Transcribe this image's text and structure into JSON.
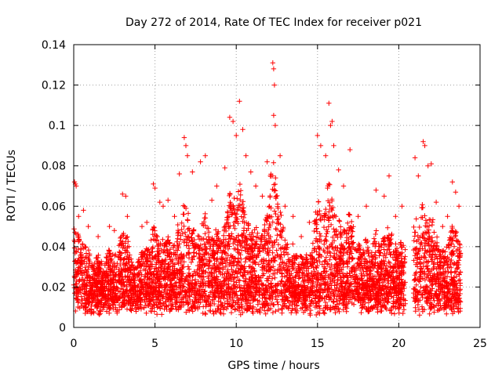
{
  "chart_data": {
    "type": "scatter",
    "title": "Day 272 of 2014, Rate Of TEC Index for receiver p021",
    "xlabel": "GPS time / hours",
    "ylabel": "ROTI / TECUs",
    "xlim": [
      0,
      25
    ],
    "ylim": [
      0,
      0.14
    ],
    "xticks": [
      0,
      5,
      10,
      15,
      20,
      25
    ],
    "xtick_labels": [
      "0",
      "5",
      "10",
      "15",
      "20",
      "25"
    ],
    "yticks": [
      0,
      0.02,
      0.04,
      0.06,
      0.08,
      0.1,
      0.12,
      0.14
    ],
    "ytick_labels": [
      "0",
      "0.02",
      "0.04",
      "0.06",
      "0.08",
      "0.1",
      "0.12",
      "0.14"
    ],
    "grid": true,
    "marker": "+",
    "color": "#ff0000",
    "data_gap_hours": [
      20.4,
      20.9
    ],
    "data_extent_hours": [
      0,
      23.8
    ],
    "series": [
      {
        "name": "ROTI",
        "points": [
          [
            0.05,
            0.072
          ],
          [
            0.1,
            0.071
          ],
          [
            0.15,
            0.07
          ],
          [
            0.3,
            0.055
          ],
          [
            0.6,
            0.058
          ],
          [
            0.9,
            0.05
          ],
          [
            1.5,
            0.045
          ],
          [
            2.2,
            0.05
          ],
          [
            2.5,
            0.048
          ],
          [
            3.0,
            0.066
          ],
          [
            3.2,
            0.065
          ],
          [
            3.3,
            0.055
          ],
          [
            4.2,
            0.05
          ],
          [
            4.5,
            0.052
          ],
          [
            4.9,
            0.071
          ],
          [
            5.0,
            0.069
          ],
          [
            5.3,
            0.062
          ],
          [
            5.5,
            0.06
          ],
          [
            5.8,
            0.063
          ],
          [
            6.2,
            0.055
          ],
          [
            6.5,
            0.076
          ],
          [
            6.8,
            0.094
          ],
          [
            6.9,
            0.09
          ],
          [
            7.0,
            0.085
          ],
          [
            7.3,
            0.077
          ],
          [
            7.8,
            0.082
          ],
          [
            8.1,
            0.085
          ],
          [
            8.5,
            0.063
          ],
          [
            8.8,
            0.07
          ],
          [
            9.3,
            0.079
          ],
          [
            9.6,
            0.104
          ],
          [
            9.8,
            0.102
          ],
          [
            10.0,
            0.095
          ],
          [
            10.2,
            0.112
          ],
          [
            10.4,
            0.098
          ],
          [
            10.6,
            0.085
          ],
          [
            10.9,
            0.077
          ],
          [
            11.2,
            0.07
          ],
          [
            11.6,
            0.065
          ],
          [
            11.9,
            0.082
          ],
          [
            12.1,
            0.075
          ],
          [
            12.25,
            0.131
          ],
          [
            12.3,
            0.128
          ],
          [
            12.35,
            0.12
          ],
          [
            12.3,
            0.105
          ],
          [
            12.4,
            0.1
          ],
          [
            12.7,
            0.085
          ],
          [
            13.0,
            0.06
          ],
          [
            13.5,
            0.055
          ],
          [
            14.0,
            0.045
          ],
          [
            14.5,
            0.052
          ],
          [
            15.0,
            0.095
          ],
          [
            15.2,
            0.09
          ],
          [
            15.5,
            0.085
          ],
          [
            15.7,
            0.111
          ],
          [
            15.9,
            0.102
          ],
          [
            15.8,
            0.1
          ],
          [
            16.0,
            0.09
          ],
          [
            16.3,
            0.078
          ],
          [
            16.6,
            0.07
          ],
          [
            17.0,
            0.088
          ],
          [
            17.5,
            0.055
          ],
          [
            18.0,
            0.06
          ],
          [
            18.6,
            0.068
          ],
          [
            19.1,
            0.065
          ],
          [
            19.4,
            0.075
          ],
          [
            19.8,
            0.055
          ],
          [
            20.2,
            0.06
          ],
          [
            21.0,
            0.084
          ],
          [
            21.2,
            0.075
          ],
          [
            21.5,
            0.092
          ],
          [
            21.6,
            0.09
          ],
          [
            21.8,
            0.08
          ],
          [
            22.0,
            0.081
          ],
          [
            22.3,
            0.062
          ],
          [
            22.7,
            0.05
          ],
          [
            23.0,
            0.055
          ],
          [
            23.3,
            0.072
          ],
          [
            23.5,
            0.067
          ],
          [
            23.7,
            0.06
          ]
        ]
      }
    ]
  }
}
